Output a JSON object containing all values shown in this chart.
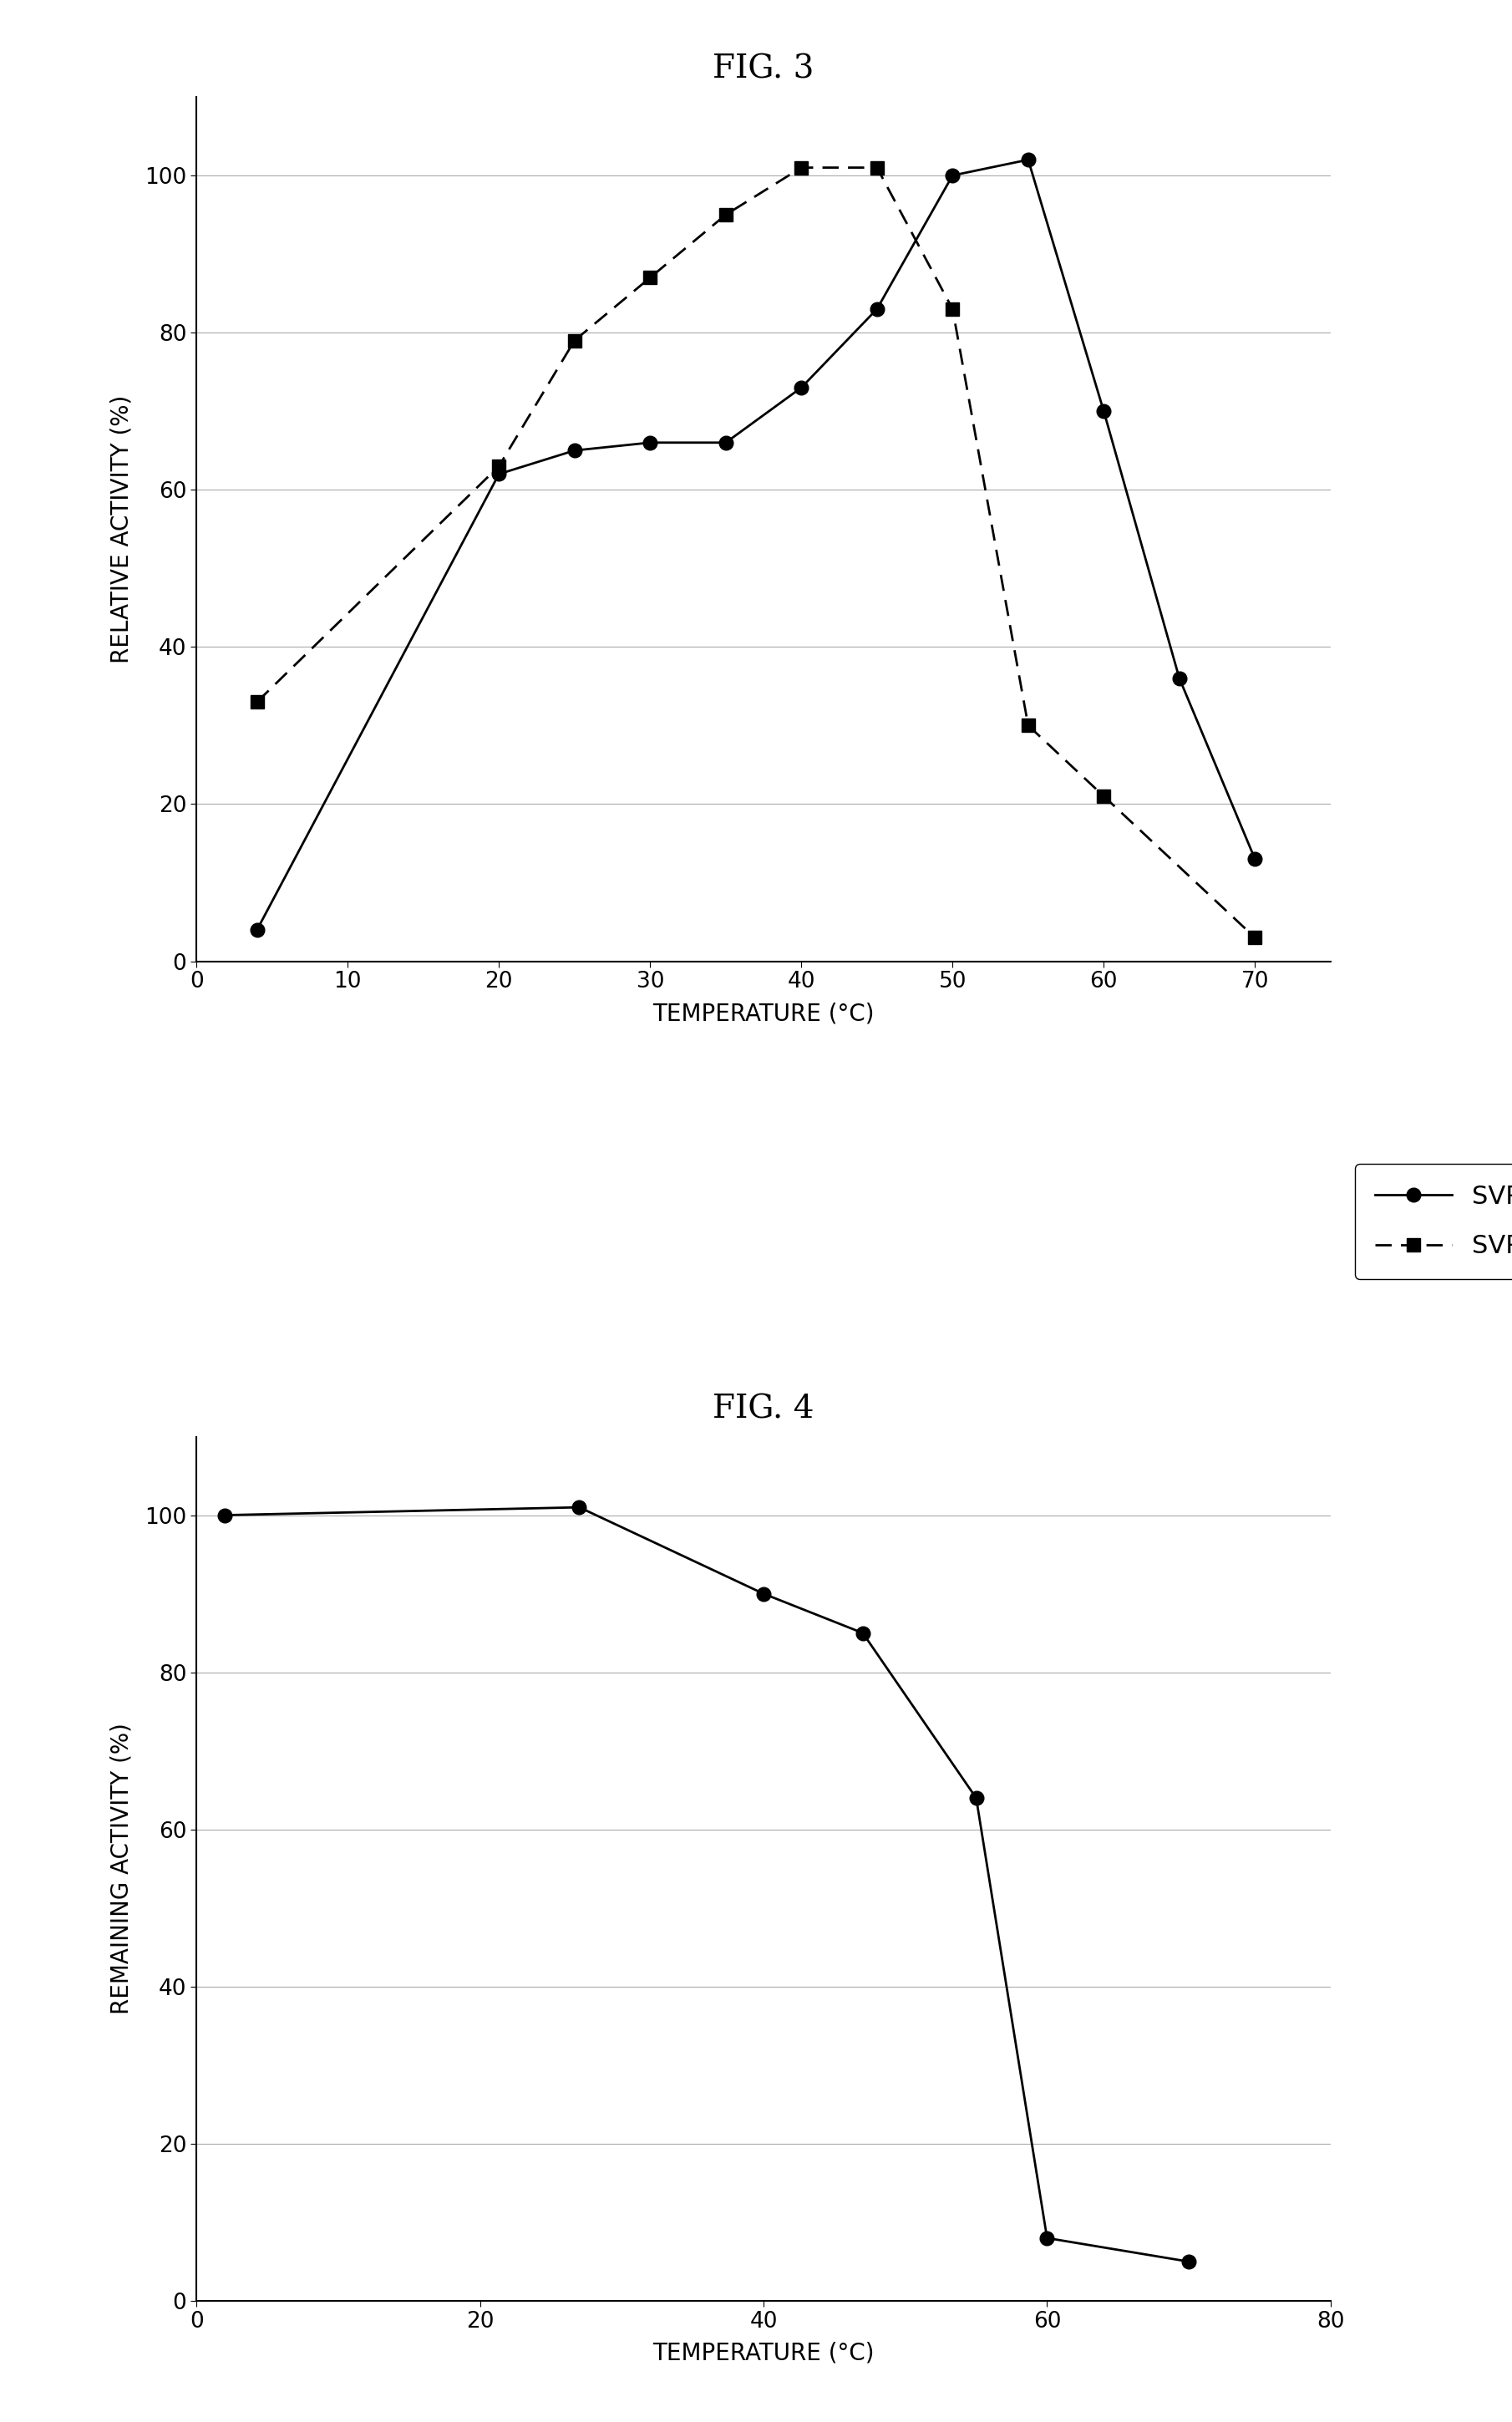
{
  "fig3_title": "FIG. 3",
  "fig4_title": "FIG. 4",
  "svp70_x": [
    4,
    20,
    25,
    30,
    35,
    40,
    45,
    50,
    55,
    60,
    65,
    70
  ],
  "svp70_y": [
    4,
    62,
    65,
    66,
    66,
    73,
    83,
    100,
    102,
    70,
    36,
    13
  ],
  "svp35_x": [
    4,
    20,
    25,
    30,
    35,
    40,
    45,
    50,
    55,
    60,
    70
  ],
  "svp35_y": [
    33,
    63,
    79,
    87,
    95,
    101,
    101,
    83,
    30,
    21,
    3
  ],
  "fig3_ylabel": "RELATIVE ACTIVITY (%)",
  "fig3_xlabel": "TEMPERATURE (°C)",
  "fig3_xlim": [
    0,
    75
  ],
  "fig3_ylim": [
    0,
    110
  ],
  "fig3_xticks": [
    0,
    10,
    20,
    30,
    40,
    50,
    60,
    70
  ],
  "fig3_yticks": [
    0,
    20,
    40,
    60,
    80,
    100
  ],
  "fig4_x": [
    2,
    27,
    40,
    47,
    55,
    60,
    70
  ],
  "fig4_y": [
    100,
    101,
    90,
    85,
    64,
    8,
    5
  ],
  "fig4_ylabel": "REMAINING ACTIVITY (%)",
  "fig4_xlabel": "TEMPERATURE (°C)",
  "fig4_xlim": [
    0,
    80
  ],
  "fig4_ylim": [
    0,
    110
  ],
  "fig4_xticks": [
    0,
    20,
    40,
    60,
    80
  ],
  "fig4_yticks": [
    0,
    20,
    40,
    60,
    80,
    100
  ],
  "background_color": "#ffffff",
  "line_color": "#000000",
  "marker_color": "#000000",
  "title_fontsize": 28,
  "label_fontsize": 20,
  "tick_fontsize": 19,
  "legend_fontsize": 22
}
